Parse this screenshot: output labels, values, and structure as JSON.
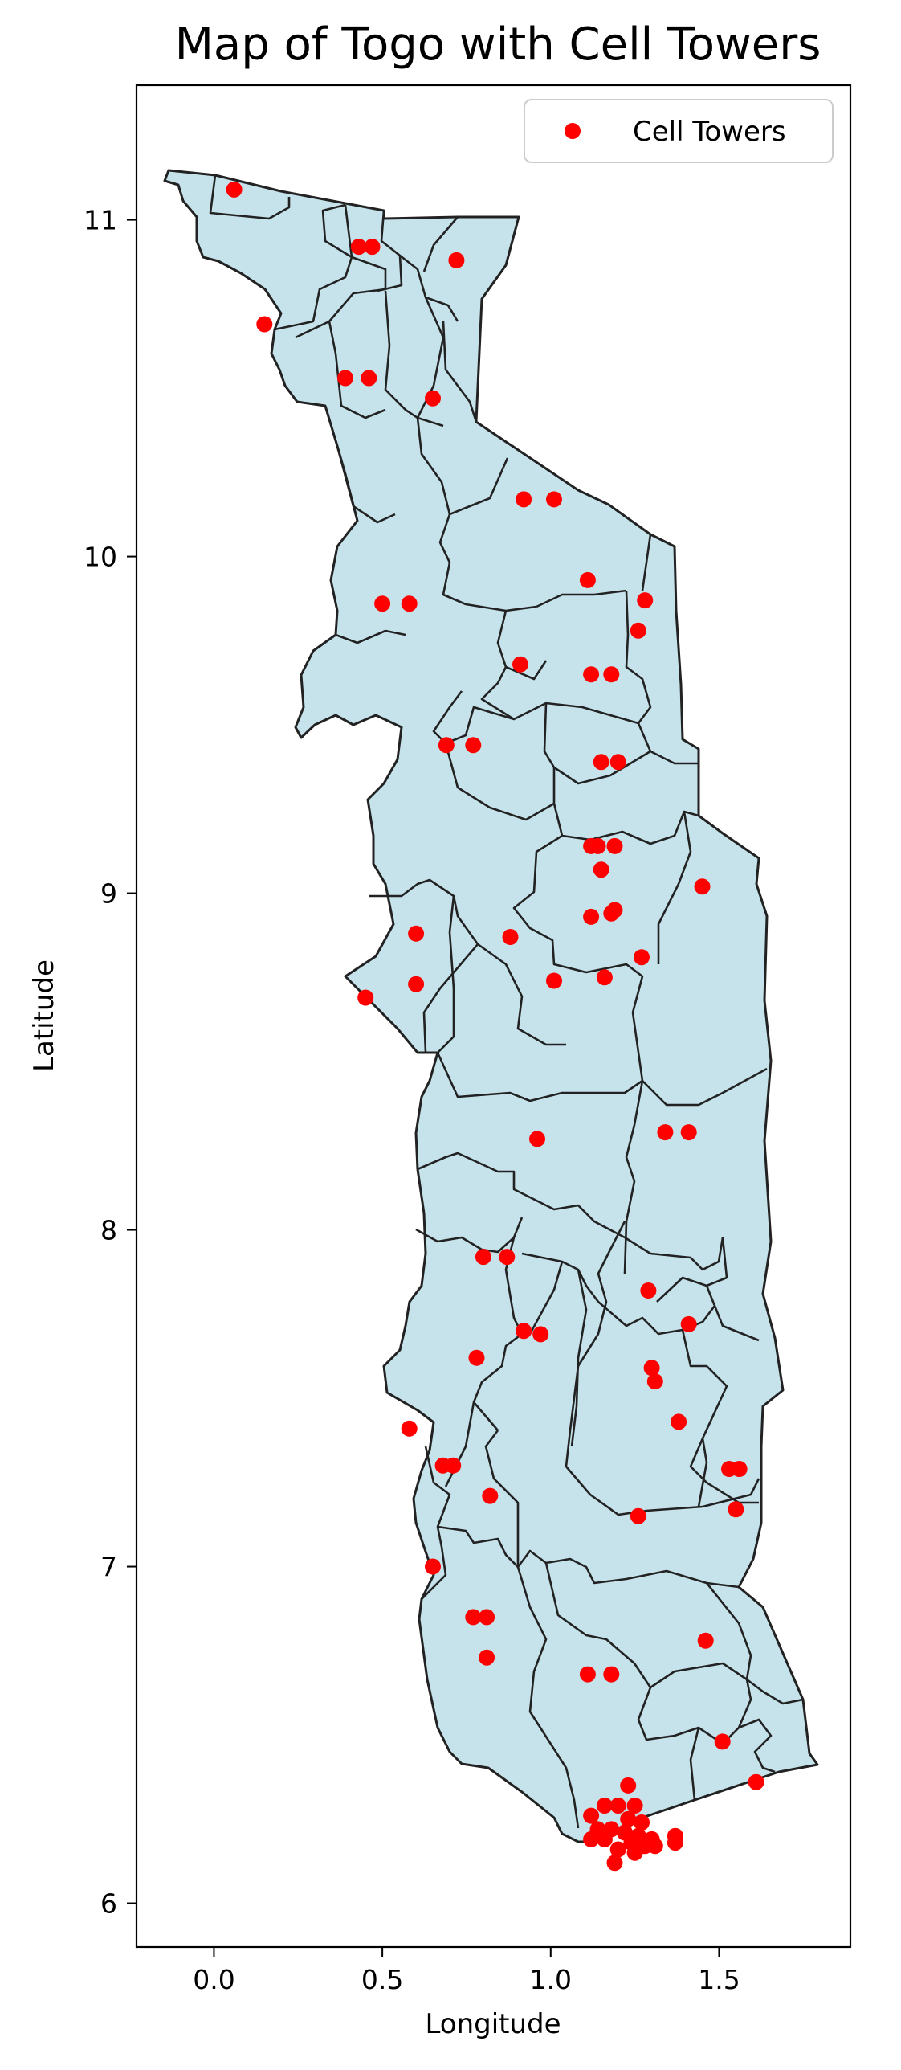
{
  "chart_data": {
    "type": "scatter",
    "title": "Map of Togo with Cell Towers",
    "xlabel": "Longitude",
    "ylabel": "Latitude",
    "xlim": [
      -0.23,
      1.89
    ],
    "ylim": [
      5.87,
      11.4
    ],
    "xticks": [
      0.0,
      0.5,
      1.0,
      1.5
    ],
    "xtick_labels": [
      "0.0",
      "0.5",
      "1.0",
      "1.5"
    ],
    "yticks": [
      6,
      7,
      8,
      9,
      10,
      11
    ],
    "ytick_labels": [
      "6",
      "7",
      "8",
      "9",
      "10",
      "11"
    ],
    "grid": false,
    "legend_position": "top-right",
    "colors": {
      "region_fill": "#c6e3ec",
      "region_edge": "#222222",
      "points": "#ff0000",
      "axes": "#000000"
    },
    "series": [
      {
        "name": "Cell Towers",
        "marker": "circle",
        "points": [
          [
            0.06,
            11.09
          ],
          [
            0.43,
            10.92
          ],
          [
            0.47,
            10.92
          ],
          [
            0.72,
            10.88
          ],
          [
            0.15,
            10.69
          ],
          [
            0.39,
            10.53
          ],
          [
            0.46,
            10.53
          ],
          [
            0.65,
            10.47
          ],
          [
            0.92,
            10.17
          ],
          [
            1.01,
            10.17
          ],
          [
            1.11,
            9.93
          ],
          [
            1.28,
            9.87
          ],
          [
            0.5,
            9.86
          ],
          [
            0.58,
            9.86
          ],
          [
            1.26,
            9.78
          ],
          [
            0.91,
            9.68
          ],
          [
            1.12,
            9.65
          ],
          [
            1.18,
            9.65
          ],
          [
            0.69,
            9.44
          ],
          [
            0.77,
            9.44
          ],
          [
            1.15,
            9.39
          ],
          [
            1.2,
            9.39
          ],
          [
            1.12,
            9.14
          ],
          [
            1.14,
            9.14
          ],
          [
            1.19,
            9.14
          ],
          [
            1.15,
            9.07
          ],
          [
            1.45,
            9.02
          ],
          [
            1.12,
            8.93
          ],
          [
            1.18,
            8.94
          ],
          [
            1.19,
            8.95
          ],
          [
            0.6,
            8.88
          ],
          [
            0.88,
            8.87
          ],
          [
            1.27,
            8.81
          ],
          [
            1.16,
            8.75
          ],
          [
            1.01,
            8.74
          ],
          [
            0.6,
            8.73
          ],
          [
            0.45,
            8.69
          ],
          [
            1.34,
            8.29
          ],
          [
            1.41,
            8.29
          ],
          [
            0.96,
            8.27
          ],
          [
            0.8,
            7.92
          ],
          [
            0.87,
            7.92
          ],
          [
            1.29,
            7.82
          ],
          [
            1.41,
            7.72
          ],
          [
            0.92,
            7.7
          ],
          [
            0.97,
            7.69
          ],
          [
            0.78,
            7.62
          ],
          [
            1.3,
            7.59
          ],
          [
            1.31,
            7.55
          ],
          [
            1.38,
            7.43
          ],
          [
            0.58,
            7.41
          ],
          [
            0.68,
            7.3
          ],
          [
            0.71,
            7.3
          ],
          [
            1.53,
            7.29
          ],
          [
            1.56,
            7.29
          ],
          [
            0.82,
            7.21
          ],
          [
            1.55,
            7.17
          ],
          [
            1.26,
            7.15
          ],
          [
            0.65,
            7.0
          ],
          [
            0.77,
            6.85
          ],
          [
            0.81,
            6.85
          ],
          [
            1.46,
            6.78
          ],
          [
            0.81,
            6.73
          ],
          [
            1.11,
            6.68
          ],
          [
            1.18,
            6.68
          ],
          [
            1.51,
            6.48
          ],
          [
            1.61,
            6.36
          ],
          [
            1.23,
            6.35
          ],
          [
            1.16,
            6.29
          ],
          [
            1.2,
            6.29
          ],
          [
            1.25,
            6.29
          ],
          [
            1.12,
            6.26
          ],
          [
            1.23,
            6.25
          ],
          [
            1.27,
            6.24
          ],
          [
            1.14,
            6.22
          ],
          [
            1.18,
            6.22
          ],
          [
            1.22,
            6.21
          ],
          [
            1.26,
            6.2
          ],
          [
            1.3,
            6.19
          ],
          [
            1.37,
            6.2
          ],
          [
            1.12,
            6.19
          ],
          [
            1.16,
            6.19
          ],
          [
            1.24,
            6.18
          ],
          [
            1.28,
            6.17
          ],
          [
            1.31,
            6.17
          ],
          [
            1.37,
            6.18
          ],
          [
            1.2,
            6.16
          ],
          [
            1.25,
            6.15
          ],
          [
            1.19,
            6.12
          ]
        ]
      }
    ]
  }
}
